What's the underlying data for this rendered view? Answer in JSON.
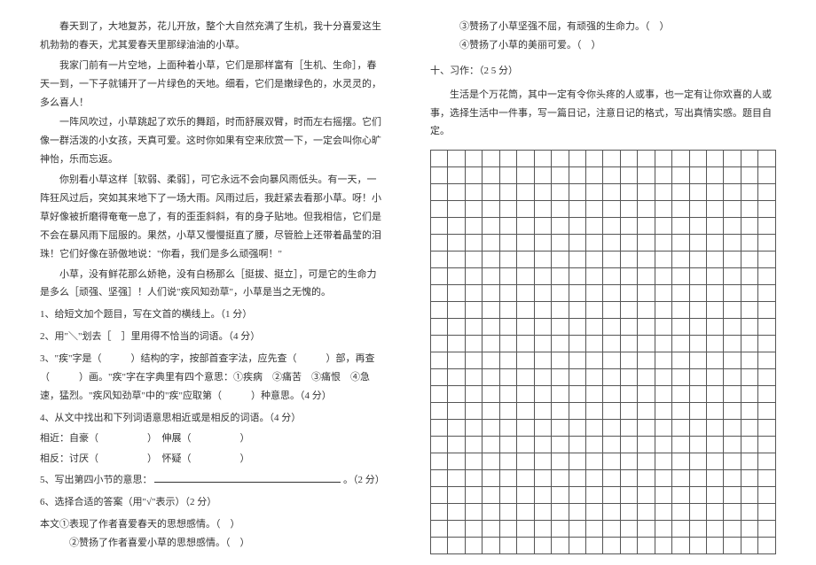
{
  "left": {
    "paragraphs": [
      "春天到了，大地复苏，花儿开放，整个大自然充满了生机，我十分喜爱这生机勃勃的春天，尤其爱春天里那绿油油的小草。",
      "我家门前有一片空地，上面种着小草，它们是那样富有［生机、生命］，春天一到，一下子就铺开了一片绿色的天地。细看，它们是嫩绿色的，水灵灵的，多么喜人！",
      "一阵风吹过，小草跳起了欢乐的舞蹈，时而舒展双臂，时而左右摇摆。它们像一群活泼的小女孩，天真可爱。这时你如果有空来欣赏一下，一定会叫你心旷神怡，乐而忘返。",
      "你别看小草这样［软弱、柔弱］，可它永远不会向暴风雨低头。有一天，一阵狂风过后，突如其来地下了一场大雨。风雨过后，我赶紧去看那小草。呀！小草好像被折磨得奄奄一息了，有的歪歪斜斜，有的身子贴地。但我相信，它们是不会在暴风雨下屈服的。果然，小草又慢慢挺直了腰，尽管脸上还带着晶莹的泪珠！它们好像在骄傲地说：\"你看，我们是多么顽强啊！\"",
      "小草，没有鲜花那么娇艳，没有白杨那么［挺拔、挺立］，可是它的生命力是多么［顽强、坚强］！人们说\"疾风知劲草\"，小草是当之无愧的。"
    ],
    "questions": [
      "1、给短文加个题目，写在文首的横线上。（1 分）",
      "2、用\"＼\"划去［　］里用得不恰当的词语。（4 分）",
      "3、\"疾\"字是（　　　）结构的字，按部首查字法，应先查（　　　）部，再查（　　　）画。\"疾\"字在字典里有四个意思：①疾病　②痛苦　③痛恨　④急速，猛烈。\"疾风知劲草\"中的\"疾\"应取第（　　　）种意思。（4 分）",
      "4、从文中找出和下列词语意思相近或是相反的词语。（4 分）"
    ],
    "pairs": {
      "near_label": "相近：自豪（　　　　　）　伸展（　　　　　）",
      "opp_label": "相反：讨厌（　　　　　）　怀疑（　　　　　）"
    },
    "q5": "5、写出第四小节的意思：",
    "q5_tail": "。（2 分）",
    "q6": "6、选择合适的答案（用\"√\"表示）（2 分）",
    "q6_stem": "本文①表现了作者喜爱春天的思想感情。（　）",
    "q6_opt2": "②赞扬了作者喜爱小草的思想感情。（　）"
  },
  "right": {
    "opt3": "③赞扬了小草坚强不屈，有顽强的生命力。（　）",
    "opt4": "④赞扬了小草的美丽可爱。（　）",
    "section": "十、习作：（2 5 分）",
    "prompt": "生活是个万花筒，其中一定有令你头疼的人或事，也一定有让你欢喜的人或事，选择生活中一件事，写一篇日记，注意日记的格式，写出真情实感。题目自定。",
    "grid": {
      "rows": 24,
      "cols": 20
    }
  },
  "colors": {
    "text": "#333333",
    "border": "#555555",
    "bg": "#ffffff"
  }
}
